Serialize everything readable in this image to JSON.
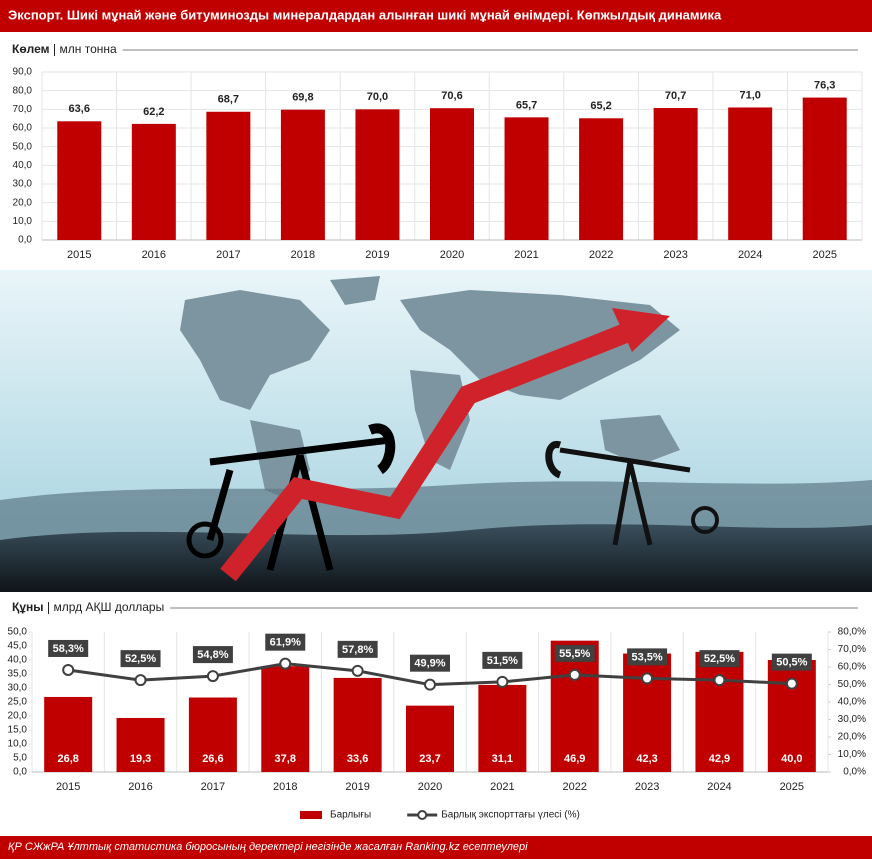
{
  "header": {
    "title": "Экспорт. Шикі мұнай және битуминозды минералдардан алынған шикі мұнай өнімдері. Көпжылдық динамика"
  },
  "chart_data": [
    {
      "type": "bar",
      "title": "Көлем",
      "unit": "млн тонна",
      "categories": [
        "2015",
        "2016",
        "2017",
        "2018",
        "2019",
        "2020",
        "2021",
        "2022",
        "2023",
        "2024",
        "2025"
      ],
      "values": [
        63.6,
        62.2,
        68.7,
        69.8,
        70.0,
        70.6,
        65.7,
        65.2,
        70.7,
        71.0,
        76.3
      ],
      "value_labels": [
        "63,6",
        "62,2",
        "68,7",
        "69,8",
        "70,0",
        "70,6",
        "65,7",
        "65,2",
        "70,7",
        "71,0",
        "76,3"
      ],
      "color": "#c00000",
      "grid": true,
      "ylim": [
        0,
        90
      ],
      "yticks": [
        {
          "value": 0,
          "label": "0,0"
        },
        {
          "value": 10,
          "label": "10,0"
        },
        {
          "value": 20,
          "label": "20,0"
        },
        {
          "value": 30,
          "label": "30,0"
        },
        {
          "value": 40,
          "label": "40,0"
        },
        {
          "value": 50,
          "label": "50,0"
        },
        {
          "value": 60,
          "label": "60,0"
        },
        {
          "value": 70,
          "label": "70,0"
        },
        {
          "value": 80,
          "label": "80,0"
        },
        {
          "value": 90,
          "label": "90,0"
        }
      ]
    },
    {
      "type": "bar-line",
      "title": "Құны",
      "unit": "млрд АҚШ доллары",
      "categories": [
        "2015",
        "2016",
        "2017",
        "2018",
        "2019",
        "2020",
        "2021",
        "2022",
        "2023",
        "2024",
        "2025"
      ],
      "series": [
        {
          "name": "Барлығы",
          "type": "bar",
          "color": "#c00000",
          "values": [
            26.8,
            19.3,
            26.6,
            37.8,
            33.6,
            23.7,
            31.1,
            46.9,
            42.3,
            42.9,
            40.0
          ],
          "value_labels": [
            "26,8",
            "19,3",
            "26,6",
            "37,8",
            "33,6",
            "23,7",
            "31,1",
            "46,9",
            "42,3",
            "42,9",
            "40,0"
          ]
        },
        {
          "name": "Барлық экспорттағы үлесі (%)",
          "type": "line",
          "axis": "y2",
          "color": "#404040",
          "values": [
            58.3,
            52.5,
            54.8,
            61.9,
            57.8,
            49.9,
            51.5,
            55.5,
            53.5,
            52.5,
            50.5
          ],
          "value_labels": [
            "58,3%",
            "52,5%",
            "54,8%",
            "61,9%",
            "57,8%",
            "49,9%",
            "51,5%",
            "55,5%",
            "53,5%",
            "52,5%",
            "50,5%"
          ]
        }
      ],
      "grid": false,
      "legend": "bottom",
      "ylim": [
        0,
        50
      ],
      "yticks": [
        {
          "value": 0,
          "label": "0,0"
        },
        {
          "value": 5,
          "label": "5,0"
        },
        {
          "value": 10,
          "label": "10,0"
        },
        {
          "value": 15,
          "label": "15,0"
        },
        {
          "value": 20,
          "label": "20,0"
        },
        {
          "value": 25,
          "label": "25,0"
        },
        {
          "value": 30,
          "label": "30,0"
        },
        {
          "value": 35,
          "label": "35,0"
        },
        {
          "value": 40,
          "label": "40,0"
        },
        {
          "value": 45,
          "label": "45,0"
        },
        {
          "value": 50,
          "label": "50,0"
        }
      ],
      "y2lim": [
        0,
        80
      ],
      "y2ticks": [
        {
          "value": 0,
          "label": "0,0%"
        },
        {
          "value": 10,
          "label": "10,0%"
        },
        {
          "value": 20,
          "label": "20,0%"
        },
        {
          "value": 30,
          "label": "30,0%"
        },
        {
          "value": 40,
          "label": "40,0%"
        },
        {
          "value": 50,
          "label": "50,0%"
        },
        {
          "value": 60,
          "label": "60,0%"
        },
        {
          "value": 70,
          "label": "70,0%"
        },
        {
          "value": 80,
          "label": "80,0%"
        }
      ]
    }
  ],
  "footer": {
    "source": "ҚР СЖжРА Ұлттық статистика бюросының деректері негізінде жасалған Ranking.kz есептеулері"
  }
}
